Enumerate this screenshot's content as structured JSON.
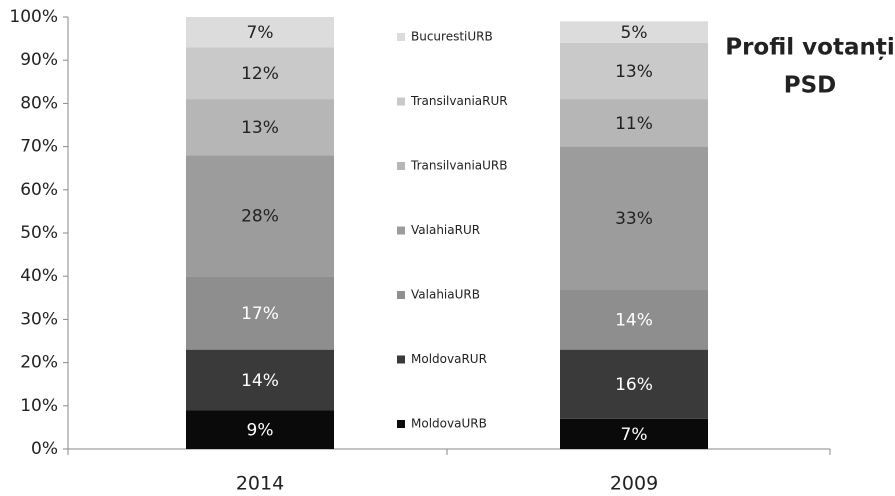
{
  "chart_data": {
    "type": "stacked_bar",
    "title": [
      "Profil votanți",
      "PSD"
    ],
    "categories": [
      "2014",
      "2009"
    ],
    "series": [
      {
        "name": "MoldovaURB",
        "color": "#0a0a0a",
        "values": [
          9,
          7
        ],
        "value_labels": [
          "9%",
          "7%"
        ]
      },
      {
        "name": "MoldovaRUR",
        "color": "#3a3a3a",
        "values": [
          14,
          16
        ],
        "value_labels": [
          "14%",
          "16%"
        ]
      },
      {
        "name": "ValahiaURB",
        "color": "#8e8e8e",
        "values": [
          17,
          14
        ],
        "value_labels": [
          "17%",
          "14%"
        ]
      },
      {
        "name": "ValahiaRUR",
        "color": "#9c9c9c",
        "values": [
          28,
          33
        ],
        "value_labels": [
          "28%",
          "33%"
        ]
      },
      {
        "name": "TransilvaniaURB",
        "color": "#b6b6b6",
        "values": [
          13,
          11
        ],
        "value_labels": [
          "13%",
          "11%"
        ]
      },
      {
        "name": "TransilvaniaRUR",
        "color": "#c9c9c9",
        "values": [
          12,
          13
        ],
        "value_labels": [
          "12%",
          "13%"
        ]
      },
      {
        "name": "BucurestiURB",
        "color": "#dcdcdc",
        "values": [
          7,
          5
        ],
        "value_labels": [
          "7%",
          "5%"
        ]
      }
    ],
    "ylim": [
      0,
      100
    ],
    "yticks": [
      {
        "value": 0,
        "label": "0%"
      },
      {
        "value": 10,
        "label": "10%"
      },
      {
        "value": 20,
        "label": "20%"
      },
      {
        "value": 30,
        "label": "30%"
      },
      {
        "value": 40,
        "label": "40%"
      },
      {
        "value": 50,
        "label": "50%"
      },
      {
        "value": 60,
        "label": "60%"
      },
      {
        "value": 70,
        "label": "70%"
      },
      {
        "value": 80,
        "label": "80%"
      },
      {
        "value": 90,
        "label": "90%"
      },
      {
        "value": 100,
        "label": "100%"
      }
    ],
    "grid": false
  }
}
